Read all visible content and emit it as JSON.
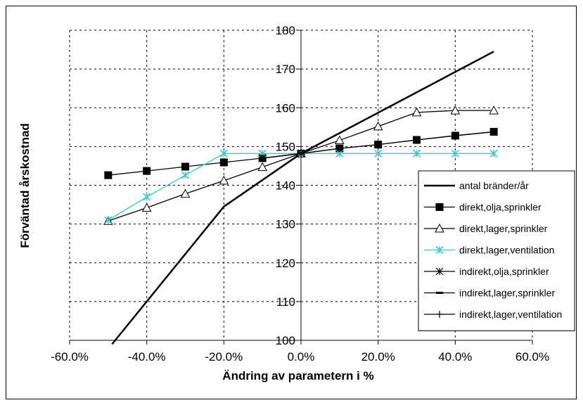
{
  "chart_data": {
    "type": "line",
    "xlabel": "Ändring av parametern i %",
    "ylabel": "Förväntad årskostnad",
    "xlim": [
      -0.6,
      0.6
    ],
    "ylim": [
      100,
      180
    ],
    "x_ticks": [
      -0.6,
      -0.4,
      -0.2,
      0.0,
      0.2,
      0.4,
      0.6
    ],
    "x_tick_labels": [
      "-60.0%",
      "-40.0%",
      "-20.0%",
      "0.0%",
      "20.0%",
      "40.0%",
      "60.0%"
    ],
    "y_ticks": [
      100,
      110,
      120,
      130,
      140,
      150,
      160,
      170,
      180
    ],
    "y_tick_labels": [
      "100",
      "110",
      "120",
      "130",
      "140",
      "150",
      "160",
      "170",
      "180"
    ],
    "grid": true,
    "legend_position": "right",
    "series": [
      {
        "name": "antal bränder/år",
        "marker": "none",
        "color": "#000000",
        "width": 2.5,
        "x": [
          -0.49,
          -0.2,
          0.0,
          0.5
        ],
        "y": [
          99,
          134.5,
          148.2,
          174.5
        ]
      },
      {
        "name": "direkt,olja,sprinkler",
        "marker": "square",
        "color": "#000000",
        "width": 1.3,
        "x": [
          -0.5,
          -0.4,
          -0.3,
          -0.2,
          -0.1,
          0.0,
          0.1,
          0.2,
          0.3,
          0.4,
          0.5
        ],
        "y": [
          142.6,
          143.7,
          144.8,
          145.9,
          147.0,
          148.2,
          149.5,
          150.5,
          151.7,
          152.8,
          153.8
        ]
      },
      {
        "name": "direkt,lager,sprinkler",
        "marker": "triangle",
        "color": "#000000",
        "width": 1.3,
        "x": [
          -0.5,
          -0.4,
          -0.3,
          -0.2,
          -0.1,
          0.0,
          0.1,
          0.2,
          0.3,
          0.4,
          0.5
        ],
        "y": [
          130.8,
          134.2,
          137.8,
          141.2,
          144.7,
          148.2,
          151.6,
          155.2,
          158.8,
          159.3,
          159.3
        ]
      },
      {
        "name": "direkt,lager,ventilation",
        "marker": "asterisk",
        "color": "#33cccc",
        "width": 1.3,
        "x": [
          -0.5,
          -0.4,
          -0.3,
          -0.2,
          -0.1,
          0.0,
          0.1,
          0.2,
          0.3,
          0.4,
          0.5
        ],
        "y": [
          131.0,
          137.0,
          142.6,
          148.2,
          148.2,
          148.2,
          148.2,
          148.2,
          148.2,
          148.2,
          148.2
        ]
      },
      {
        "name": "indirekt,olja,sprinkler",
        "marker": "star",
        "color": "#000000",
        "width": 1.3,
        "x": [
          -0.1,
          0.0,
          0.1,
          0.2,
          0.3,
          0.4,
          0.5
        ],
        "y": [
          147.0,
          148.2,
          149.5,
          150.5,
          151.7,
          152.8,
          153.8
        ]
      },
      {
        "name": "indirekt,lager,sprinkler",
        "marker": "dash",
        "color": "#000000",
        "width": 1.3,
        "x": [
          -0.1,
          0.0
        ],
        "y": [
          147.0,
          148.2
        ]
      },
      {
        "name": "indirekt,lager,ventilation",
        "marker": "plus",
        "color": "#000000",
        "width": 1.3,
        "x": [
          -0.1,
          0.0
        ],
        "y": [
          147.0,
          148.2
        ]
      }
    ]
  }
}
